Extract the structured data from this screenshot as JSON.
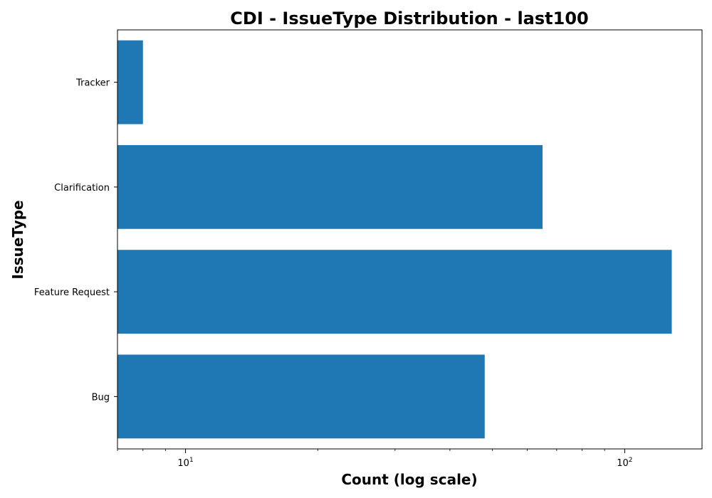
{
  "chart_data": {
    "type": "bar",
    "orientation": "horizontal",
    "title": "CDI - IssueType Distribution - last100",
    "xlabel": "Count (log scale)",
    "ylabel": "IssueType",
    "x_scale": "log",
    "xlim": [
      7,
      150
    ],
    "x_major_ticks": [
      {
        "value": 10,
        "base": "10",
        "exp": "1"
      },
      {
        "value": 100,
        "base": "10",
        "exp": "2"
      }
    ],
    "categories": [
      "Bug",
      "Feature Request",
      "Clarification",
      "Tracker"
    ],
    "values": [
      48,
      128,
      65,
      8
    ],
    "bar_color": "#1f77b4",
    "grid": false,
    "legend": false
  }
}
